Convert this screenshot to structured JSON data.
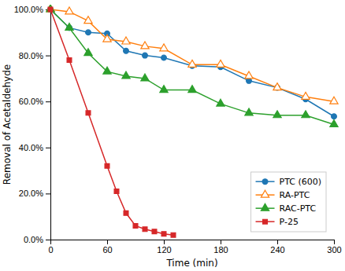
{
  "chart_data": {
    "type": "line",
    "xlabel": "Time (min)",
    "ylabel": "Removal of Acetaldehyde",
    "xlim": [
      0,
      300
    ],
    "ylim": [
      0.0,
      100.0
    ],
    "xticks": [
      0,
      60,
      120,
      180,
      240,
      300
    ],
    "yticks": [
      {
        "value": 0.0,
        "label": "0.0%"
      },
      {
        "value": 20.0,
        "label": "20.0%"
      },
      {
        "value": 40.0,
        "label": "40.0%"
      },
      {
        "value": 60.0,
        "label": "60.0%"
      },
      {
        "value": 80.0,
        "label": "80.0%"
      },
      {
        "value": 100.0,
        "label": "100.0%"
      }
    ],
    "grid": false,
    "legend": "lower right",
    "series": [
      {
        "name": "PTC (600)",
        "marker": "circle",
        "x": [
          0,
          20,
          40,
          60,
          80,
          100,
          120,
          150,
          180,
          210,
          240,
          270,
          300
        ],
        "values": [
          100.0,
          92.0,
          90.0,
          89.5,
          82.0,
          80.0,
          79.0,
          75.5,
          75.0,
          69.0,
          66.0,
          61.0,
          53.5
        ]
      },
      {
        "name": "RA-PTC",
        "marker": "triangle-open",
        "x": [
          0,
          20,
          40,
          60,
          80,
          100,
          120,
          150,
          180,
          210,
          240,
          270,
          300
        ],
        "values": [
          100.0,
          99.0,
          95.0,
          87.0,
          86.0,
          84.0,
          83.0,
          76.0,
          76.0,
          71.0,
          66.0,
          62.0,
          60.0
        ]
      },
      {
        "name": "RAC-PTC",
        "marker": "triangle",
        "x": [
          0,
          20,
          40,
          60,
          80,
          100,
          120,
          150,
          180,
          210,
          240,
          270,
          300
        ],
        "values": [
          100.0,
          92.0,
          81.0,
          73.0,
          71.0,
          70.0,
          65.0,
          65.0,
          59.0,
          55.0,
          54.0,
          54.0,
          50.0
        ]
      },
      {
        "name": "P-25",
        "marker": "square",
        "x": [
          0,
          20,
          40,
          60,
          70,
          80,
          90,
          100,
          110,
          120,
          130
        ],
        "values": [
          100.0,
          78.0,
          55.0,
          32.0,
          21.0,
          11.5,
          6.0,
          4.5,
          3.5,
          2.5,
          2.0
        ]
      }
    ]
  }
}
